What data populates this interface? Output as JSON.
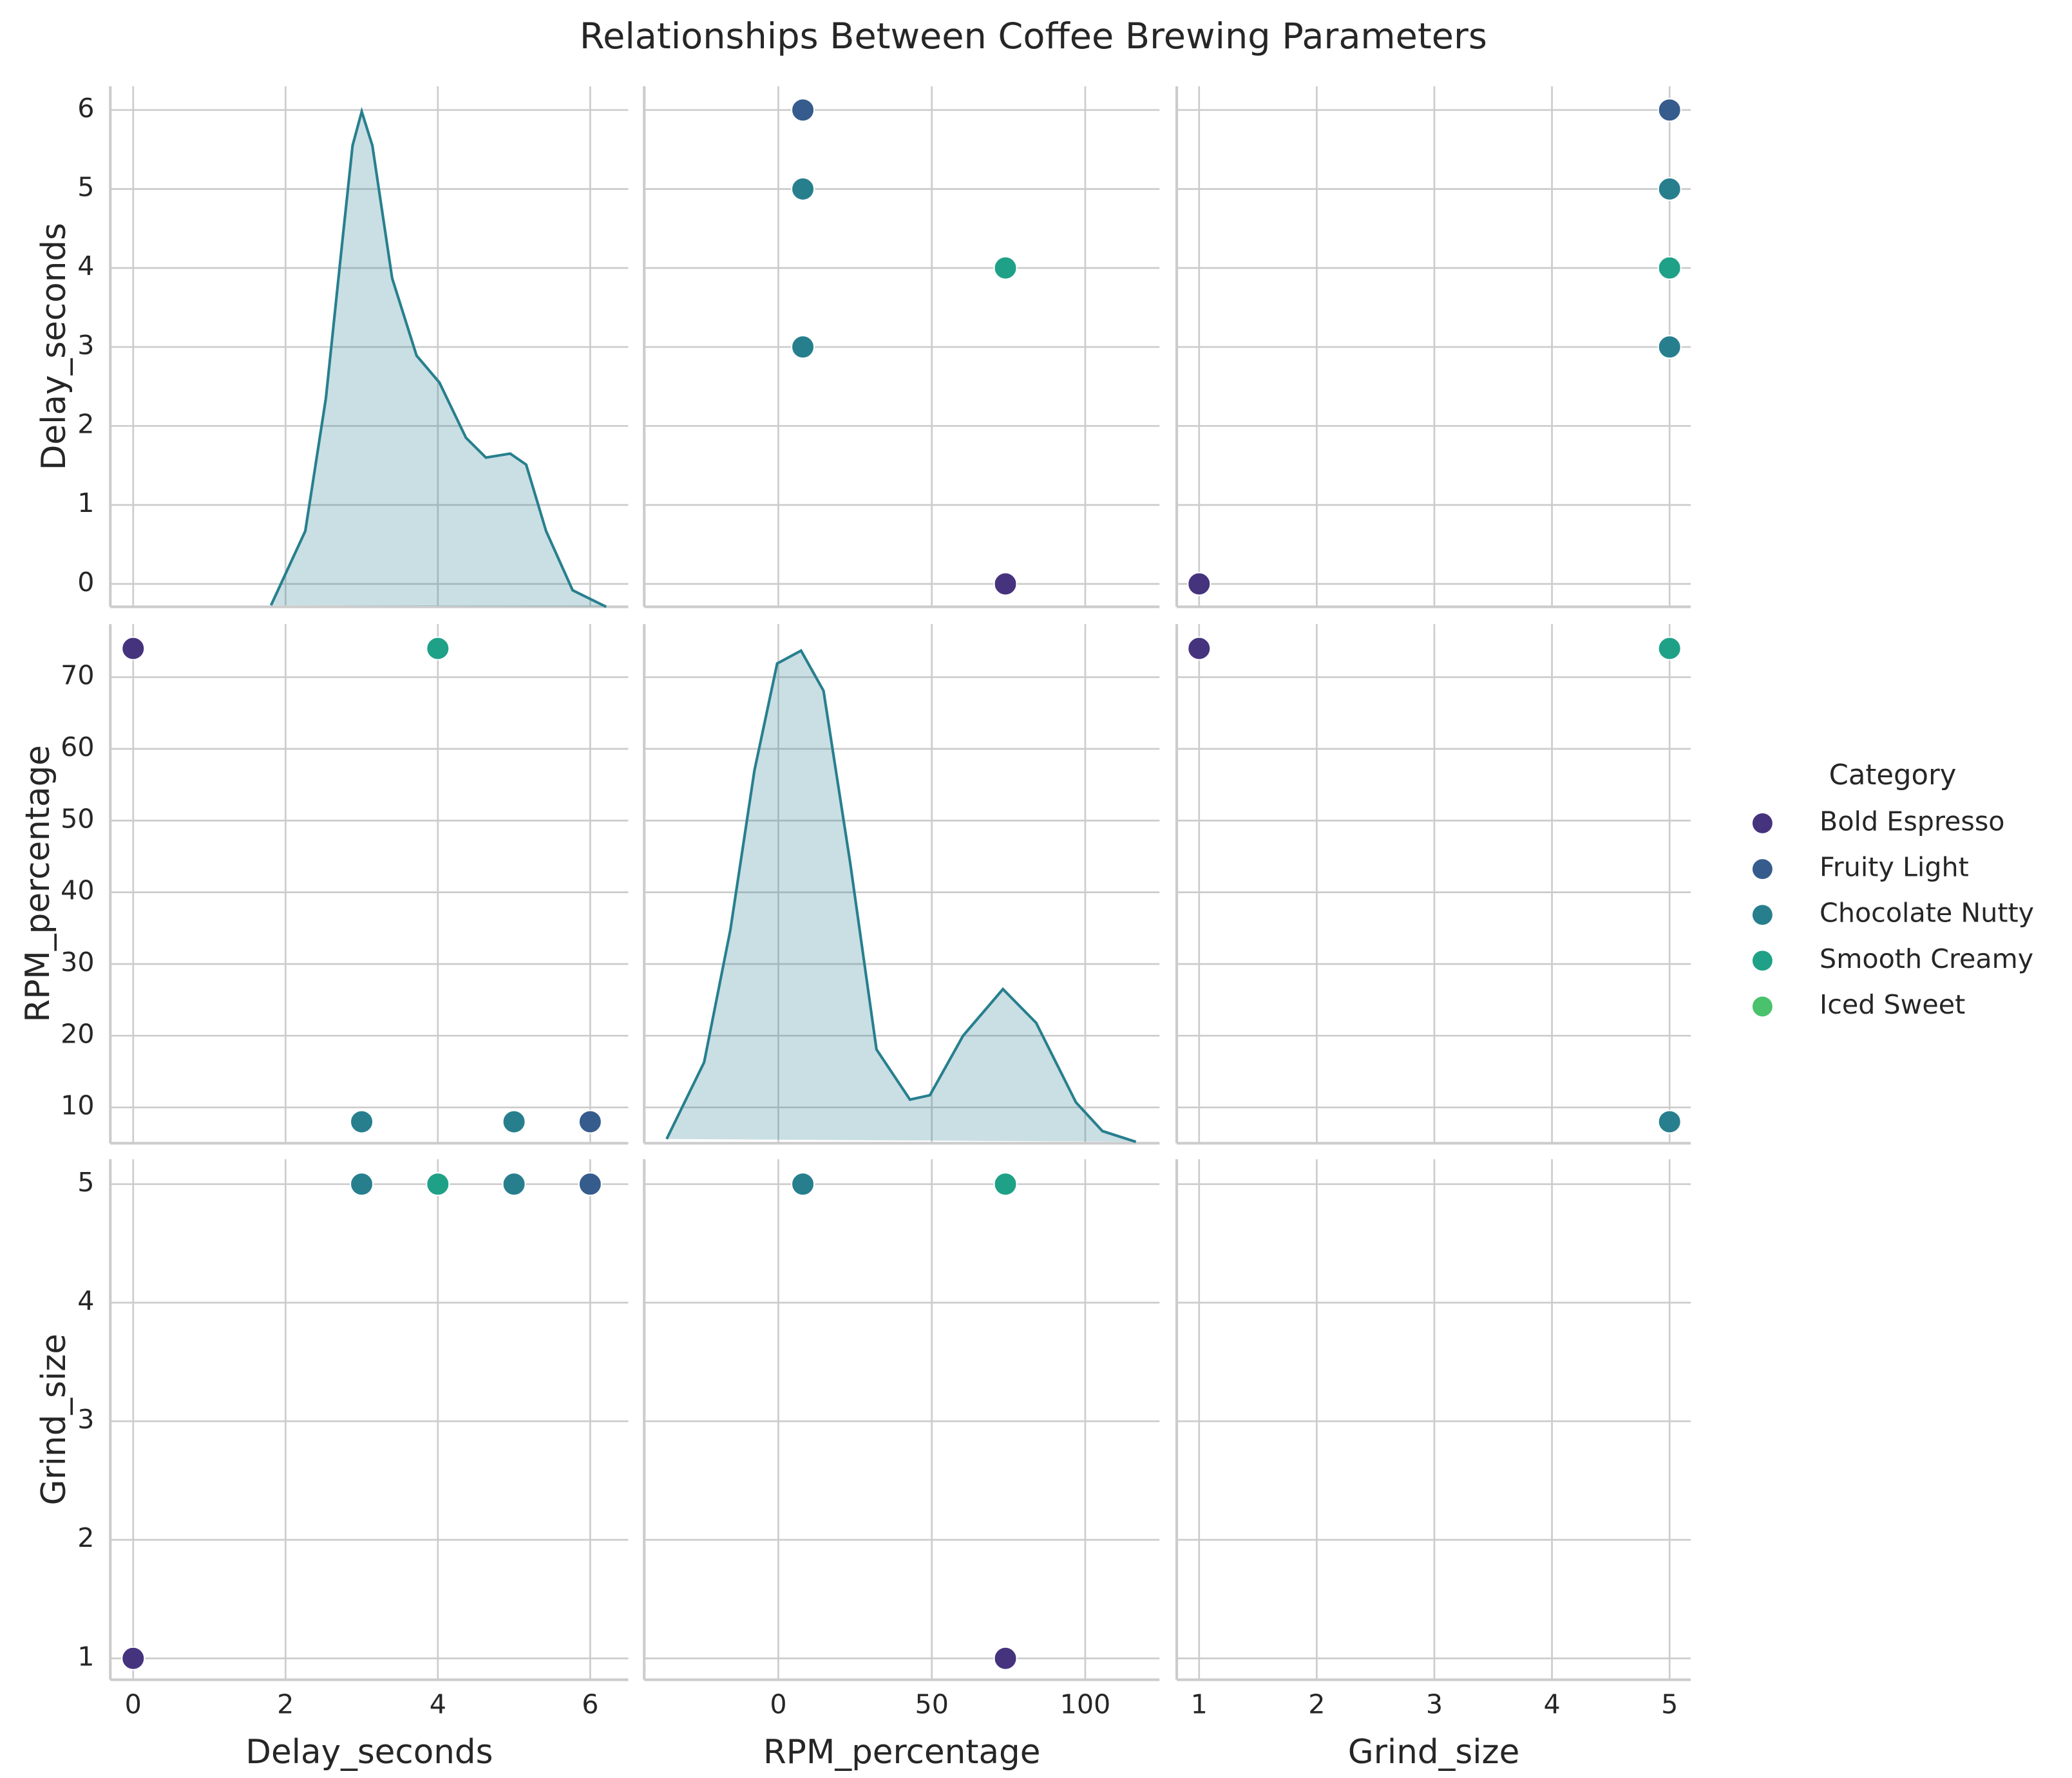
{
  "chart_data": {
    "type": "pairplot",
    "title": "Relationships Between Coffee Brewing Parameters",
    "grid": true,
    "legend_title": "Category",
    "legend_position": "right",
    "kde_color": "#277f8e",
    "variables": [
      {
        "name": "Delay_seconds",
        "xlim": [
          -0.3,
          6.5
        ],
        "xticks": [
          0,
          2,
          4,
          6
        ],
        "ylim": [
          -0.29,
          6.3
        ],
        "yticks": [
          0,
          1,
          2,
          3,
          4,
          5,
          6
        ],
        "kde": {
          "x": [
            1.81,
            2.26,
            2.53,
            2.75,
            2.88,
            3.0,
            3.14,
            3.4,
            3.72,
            4.02,
            4.37,
            4.63,
            4.95,
            5.16,
            5.42,
            5.77,
            6.21
          ],
          "y": [
            -0.27,
            0.67,
            2.35,
            4.37,
            5.55,
            5.98,
            5.55,
            3.87,
            2.89,
            2.55,
            1.85,
            1.6,
            1.65,
            1.51,
            0.67,
            -0.08,
            -0.29
          ]
        }
      },
      {
        "name": "RPM_percentage",
        "xlim": [
          -43.7,
          124.2
        ],
        "xticks": [
          0,
          50,
          100
        ],
        "ylim": [
          5,
          77.4
        ],
        "yticks": [
          10,
          20,
          30,
          40,
          50,
          60,
          70
        ],
        "kde": {
          "x": [
            -36.4,
            -24.2,
            -15.6,
            -7.8,
            -0.4,
            7.4,
            14.7,
            23.4,
            32,
            42.9,
            49.4,
            60.2,
            73.2,
            84,
            97,
            105.6,
            116.5
          ],
          "y": [
            5.6,
            16.3,
            34.8,
            57,
            71.9,
            73.7,
            68.1,
            44.1,
            18.1,
            11.1,
            11.7,
            20,
            26.5,
            21.8,
            10.7,
            6.7,
            5.2
          ]
        }
      },
      {
        "name": "Grind_size",
        "xlim": [
          0.81,
          5.18
        ],
        "xticks": [
          1,
          2,
          3,
          4,
          5
        ],
        "ylim": [
          0.82,
          5.21
        ],
        "yticks": [
          1,
          2,
          3,
          4,
          5
        ]
      }
    ],
    "series": [
      {
        "name": "Bold Espresso",
        "color": "#46337e",
        "points": [
          [
            0,
            74,
            1
          ]
        ]
      },
      {
        "name": "Fruity Light",
        "color": "#365c8d",
        "points": [
          [
            6,
            8,
            5
          ]
        ]
      },
      {
        "name": "Chocolate Nutty",
        "color": "#277f8e",
        "points": [
          [
            3,
            8,
            5
          ],
          [
            5,
            8,
            5
          ]
        ]
      },
      {
        "name": "Smooth Creamy",
        "color": "#1fa187",
        "points": [
          [
            4,
            74,
            5
          ]
        ]
      },
      {
        "name": "Iced Sweet",
        "color": "#4ac16d",
        "points": []
      }
    ]
  }
}
